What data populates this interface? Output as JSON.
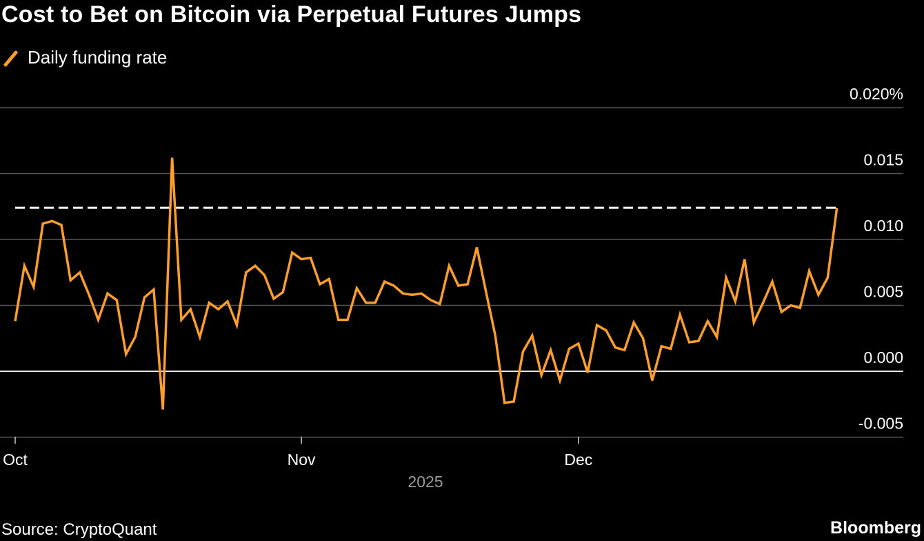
{
  "chart_data": {
    "type": "line",
    "title": "Cost to Bet on Bitcoin via Perpetual Futures Jumps",
    "legend": [
      "Daily funding rate"
    ],
    "legend_placement": "top-left",
    "xlabel": "2025",
    "ylabel": "",
    "x_start": "2025-10-01",
    "x_step": "1 day",
    "x_ticks": [
      {
        "label": "Oct",
        "day_index": 0
      },
      {
        "label": "Nov",
        "day_index": 31
      },
      {
        "label": "Dec",
        "day_index": 61
      }
    ],
    "y_ticks": [
      {
        "value": 0.02,
        "label": "0.020%"
      },
      {
        "value": 0.015,
        "label": "0.015"
      },
      {
        "value": 0.01,
        "label": "0.010"
      },
      {
        "value": 0.005,
        "label": "0.005"
      },
      {
        "value": 0.0,
        "label": "0.000"
      },
      {
        "value": -0.005,
        "label": "-0.005"
      }
    ],
    "ylim": [
      -0.005,
      0.02
    ],
    "grid": true,
    "reference_line": {
      "value": 0.0124,
      "style": "dashed"
    },
    "series": [
      {
        "name": "Daily funding rate",
        "color": "#ff9f29",
        "values": [
          0.0038,
          0.008,
          0.0064,
          0.0112,
          0.0114,
          0.0111,
          0.0069,
          0.0075,
          0.0058,
          0.0039,
          0.0059,
          0.0054,
          0.0013,
          0.0026,
          0.0056,
          0.0062,
          -0.0029,
          0.0162,
          0.0039,
          0.0047,
          0.0026,
          0.0052,
          0.0047,
          0.0053,
          0.0035,
          0.0075,
          0.008,
          0.0073,
          0.0055,
          0.006,
          0.009,
          0.0085,
          0.0086,
          0.0066,
          0.007,
          0.0039,
          0.0039,
          0.0063,
          0.0052,
          0.0052,
          0.0068,
          0.0065,
          0.0059,
          0.0058,
          0.0059,
          0.0054,
          0.0051,
          0.008,
          0.0065,
          0.0066,
          0.0094,
          0.006,
          0.0027,
          -0.0024,
          -0.0023,
          0.0015,
          0.0027,
          -0.0003,
          0.0016,
          -0.0007,
          0.0017,
          0.0021,
          -0.0001,
          0.0035,
          0.0031,
          0.0018,
          0.0016,
          0.0037,
          0.0025,
          -0.0007,
          0.0019,
          0.0017,
          0.0043,
          0.0022,
          0.0023,
          0.0038,
          0.0026,
          0.0071,
          0.0053,
          0.0085,
          0.0037,
          0.0052,
          0.0068,
          0.0045,
          0.005,
          0.0048,
          0.0076,
          0.0058,
          0.0071,
          0.0124
        ]
      }
    ]
  },
  "source": "Source: CryptoQuant",
  "brand": "Bloomberg"
}
